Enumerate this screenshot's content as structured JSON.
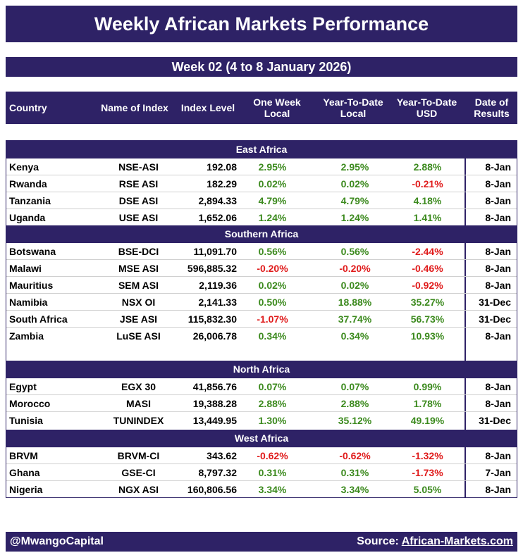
{
  "title": "Weekly African Markets Performance",
  "week": "Week 02 (4 to 8 January 2026)",
  "columns": {
    "country": "Country",
    "index": "Name of Index",
    "level": "Index Level",
    "one_week_1": "One Week",
    "one_week_2": "Local",
    "ytd_local_1": "Year-To-Date",
    "ytd_local_2": "Local",
    "ytd_usd_1": "Year-To-Date",
    "ytd_usd_2": "USD",
    "date_1": "Date of",
    "date_2": "Results"
  },
  "colors": {
    "brand": "#2e2266",
    "positive": "#3c8a1e",
    "negative": "#e01b1b"
  },
  "regions": [
    {
      "name": "East Africa",
      "rows": [
        {
          "country": "Kenya",
          "index": "NSE-ASI",
          "level": "192.08",
          "week": "2.95%",
          "ytd": "2.95%",
          "usd": "2.88%",
          "date": "8-Jan"
        },
        {
          "country": "Rwanda",
          "index": "RSE ASI",
          "level": "182.29",
          "week": "0.02%",
          "ytd": "0.02%",
          "usd": "-0.21%",
          "date": "8-Jan"
        },
        {
          "country": "Tanzania",
          "index": "DSE ASI",
          "level": "2,894.33",
          "week": "4.79%",
          "ytd": "4.79%",
          "usd": "4.18%",
          "date": "8-Jan"
        },
        {
          "country": "Uganda",
          "index": "USE ASI",
          "level": "1,652.06",
          "week": "1.24%",
          "ytd": "1.24%",
          "usd": "1.41%",
          "date": "8-Jan"
        }
      ]
    },
    {
      "name": "Southern Africa",
      "rows": [
        {
          "country": "Botswana",
          "index": "BSE-DCI",
          "level": "11,091.70",
          "week": "0.56%",
          "ytd": "0.56%",
          "usd": "-2.44%",
          "date": "8-Jan"
        },
        {
          "country": "Malawi",
          "index": "MSE ASI",
          "level": "596,885.32",
          "week": "-0.20%",
          "ytd": "-0.20%",
          "usd": "-0.46%",
          "date": "8-Jan"
        },
        {
          "country": "Mauritius",
          "index": "SEM ASI",
          "level": "2,119.36",
          "week": "0.02%",
          "ytd": "0.02%",
          "usd": "-0.92%",
          "date": "8-Jan"
        },
        {
          "country": "Namibia",
          "index": "NSX OI",
          "level": "2,141.33",
          "week": "0.50%",
          "ytd": "18.88%",
          "usd": "35.27%",
          "date": "31-Dec"
        },
        {
          "country": "South Africa",
          "index": "JSE ASI",
          "level": "115,832.30",
          "week": "-1.07%",
          "ytd": "37.74%",
          "usd": "56.73%",
          "date": "31-Dec"
        },
        {
          "country": "Zambia",
          "index": "LuSE ASI",
          "level": "26,006.78",
          "week": "0.34%",
          "ytd": "0.34%",
          "usd": "10.93%",
          "date": "8-Jan"
        }
      ]
    },
    {
      "name": "North Africa",
      "rows": [
        {
          "country": "Egypt",
          "index": "EGX 30",
          "level": "41,856.76",
          "week": "0.07%",
          "ytd": "0.07%",
          "usd": "0.99%",
          "date": "8-Jan"
        },
        {
          "country": "Morocco",
          "index": "MASI",
          "level": "19,388.28",
          "week": "2.88%",
          "ytd": "2.88%",
          "usd": "1.78%",
          "date": "8-Jan"
        },
        {
          "country": "Tunisia",
          "index": "TUNINDEX",
          "level": "13,449.95",
          "week": "1.30%",
          "ytd": "35.12%",
          "usd": "49.19%",
          "date": "31-Dec"
        }
      ]
    },
    {
      "name": "West Africa",
      "rows": [
        {
          "country": "BRVM",
          "index": "BRVM-CI",
          "level": "343.62",
          "week": "-0.62%",
          "ytd": "-0.62%",
          "usd": "-1.32%",
          "date": "8-Jan"
        },
        {
          "country": "Ghana",
          "index": "GSE-CI",
          "level": "8,797.32",
          "week": "0.31%",
          "ytd": "0.31%",
          "usd": "-1.73%",
          "date": "7-Jan"
        },
        {
          "country": "Nigeria",
          "index": "NGX ASI",
          "level": "160,806.56",
          "week": "3.34%",
          "ytd": "3.34%",
          "usd": "5.05%",
          "date": "8-Jan"
        }
      ]
    }
  ],
  "footer": {
    "handle": "@MwangoCapital",
    "source_label": "Source:",
    "source_link": "African-Markets.com"
  }
}
